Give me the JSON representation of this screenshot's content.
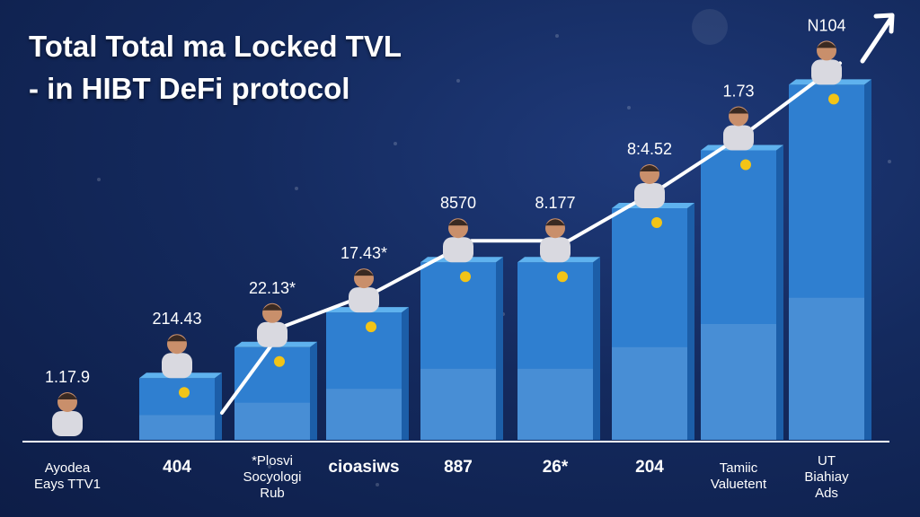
{
  "title_line1": "Total Total ma Locked TVL",
  "title_line2": "- in HIBT DeFi protocol",
  "colors": {
    "background": "#142a5e",
    "bar_front": "#2f7fd0",
    "bar_top": "#5fb2ee",
    "bar_side": "#1c5ea8",
    "coin": "#f2c417",
    "trend_line": "#ffffff",
    "label_text": "#ffffff"
  },
  "icons": [
    "person-figure-icon",
    "gold-coin-icon",
    "trend-arrow-icon"
  ],
  "chart_data": {
    "type": "bar",
    "categories": [
      "Ayodea Eays TTV1",
      "404",
      "*Plosvi Socyologi Rub",
      "cioasiws",
      "887",
      "26*",
      "204",
      "Tamiic Valuetent",
      "UT Biahiay Ads"
    ],
    "value_labels": [
      "1.17.9",
      "214.43",
      "22.13*",
      "17.43*",
      "8570",
      "8.177",
      "8:4.52",
      "1.73",
      "N104"
    ],
    "values": [
      0.5,
      1.6,
      2.4,
      3.3,
      4.6,
      4.6,
      6.0,
      7.5,
      9.2
    ],
    "ylim": [
      0,
      10
    ],
    "trend_line": true,
    "trend_arrow": true,
    "grid": false,
    "legend": "none"
  }
}
